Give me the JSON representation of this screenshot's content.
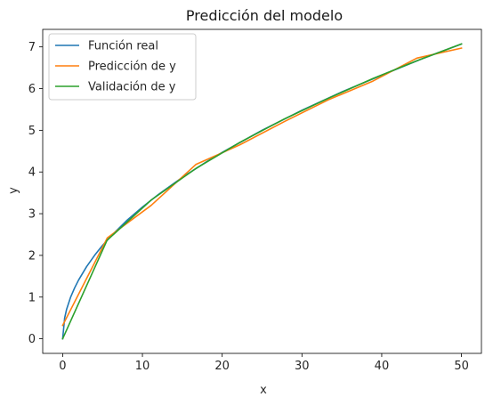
{
  "chart_data": {
    "type": "line",
    "title": "Predicción del modelo",
    "xlabel": "x",
    "ylabel": "y",
    "xlim": [
      -2.5,
      52.5
    ],
    "ylim": [
      -0.35,
      7.42
    ],
    "xticks": [
      0,
      10,
      20,
      30,
      40,
      50
    ],
    "yticks": [
      0,
      1,
      2,
      3,
      4,
      5,
      6,
      7
    ],
    "grid": false,
    "legend_position": "top-left",
    "series": [
      {
        "name": "Función real",
        "color": "#1f77b4",
        "x": [
          0,
          0.25,
          0.5,
          1,
          1.5,
          2,
          3,
          4,
          5,
          6,
          8,
          10,
          12,
          15,
          18,
          20,
          25,
          30,
          35,
          40,
          45,
          50
        ],
        "y": [
          0,
          0.5,
          0.71,
          1.0,
          1.22,
          1.41,
          1.73,
          2.0,
          2.24,
          2.45,
          2.83,
          3.16,
          3.46,
          3.87,
          4.24,
          4.47,
          5.0,
          5.48,
          5.92,
          6.32,
          6.71,
          7.07
        ]
      },
      {
        "name": "Predicción de y",
        "color": "#ff7f0e",
        "x": [
          0,
          5.6,
          11.1,
          16.7,
          22.2,
          27.8,
          33.3,
          38.9,
          44.4,
          50
        ],
        "y": [
          0.32,
          2.42,
          3.2,
          4.18,
          4.65,
          5.21,
          5.73,
          6.18,
          6.73,
          6.97
        ]
      },
      {
        "name": "Validación de y",
        "color": "#2ca02c",
        "x": [
          0,
          5.56,
          11.11,
          16.67,
          22.22,
          27.78,
          33.33,
          38.89,
          44.44,
          50
        ],
        "y": [
          0,
          2.36,
          3.33,
          4.08,
          4.71,
          5.27,
          5.77,
          6.24,
          6.67,
          7.07
        ]
      }
    ]
  }
}
